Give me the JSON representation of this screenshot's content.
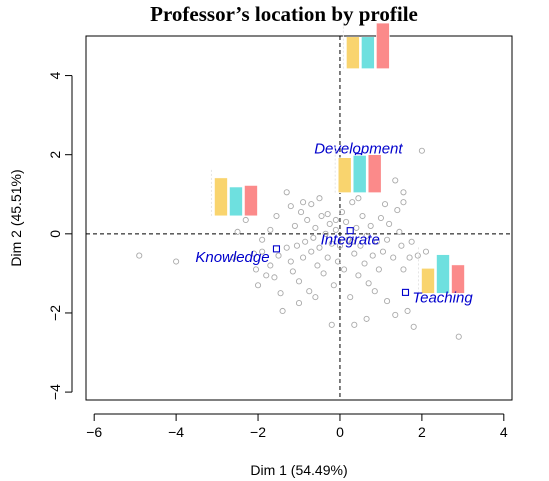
{
  "chart_data": {
    "type": "scatter",
    "title": "Professor’s location by profile",
    "xlabel": "Dim 1 (54.49%)",
    "ylabel": "Dim 2 (45.51%)",
    "xlim": [
      -6.2,
      4.2
    ],
    "ylim": [
      -4.2,
      5.0
    ],
    "xticks": [
      -6,
      -4,
      -2,
      0,
      2,
      4
    ],
    "yticks": [
      -4,
      -2,
      0,
      2,
      4
    ],
    "xtick_labels": [
      "−6",
      "−4",
      "−2",
      "0",
      "2",
      "4"
    ],
    "ytick_labels": [
      "−4",
      "−2",
      "0",
      "2",
      "4"
    ],
    "reference_lines": {
      "x": 0,
      "y": 0,
      "style": "dashed"
    },
    "bar_colors": [
      "#F9D46E",
      "#6EE0DF",
      "#FB8A8A"
    ],
    "profiles": [
      {
        "label": "Development",
        "x": 0.45,
        "y": 1.95,
        "bars": [
          0.84,
          0.84,
          1.2
        ]
      },
      {
        "label": "Integrate",
        "x": 0.25,
        "y": 0.08,
        "bars": [
          0.92,
          0.98,
          1.0
        ]
      },
      {
        "label": "Knowledge",
        "x": -1.55,
        "y": -0.38,
        "bars": [
          1.0,
          0.76,
          0.8
        ]
      },
      {
        "label": "Teaching",
        "x": 1.6,
        "y": -1.48,
        "bars": [
          0.66,
          1.02,
          0.75
        ]
      }
    ],
    "points": [
      [
        -4.9,
        -0.55
      ],
      [
        -4.0,
        -0.7
      ],
      [
        -2.6,
        -0.6
      ],
      [
        -2.1,
        -0.5
      ],
      [
        -2.05,
        -0.9
      ],
      [
        -2.0,
        -1.3
      ],
      [
        -1.9,
        -0.45
      ],
      [
        -1.8,
        -1.05
      ],
      [
        -1.7,
        -0.8
      ],
      [
        -1.6,
        -1.1
      ],
      [
        -1.5,
        -0.55
      ],
      [
        -1.45,
        -1.5
      ],
      [
        -1.4,
        -1.95
      ],
      [
        -1.3,
        -0.35
      ],
      [
        -1.2,
        -0.7
      ],
      [
        -1.15,
        -0.95
      ],
      [
        -1.1,
        0.2
      ],
      [
        -1.05,
        -0.3
      ],
      [
        -1.0,
        -1.2
      ],
      [
        -0.95,
        0.55
      ],
      [
        -0.9,
        -0.6
      ],
      [
        -0.85,
        -0.2
      ],
      [
        -0.8,
        0.35
      ],
      [
        -0.75,
        -1.45
      ],
      [
        -0.7,
        -0.45
      ],
      [
        -0.65,
        -0.1
      ],
      [
        -0.6,
        0.15
      ],
      [
        -0.55,
        -0.8
      ],
      [
        -0.5,
        -0.35
      ],
      [
        -0.45,
        0.45
      ],
      [
        -0.4,
        -1.0
      ],
      [
        -0.35,
        0.0
      ],
      [
        -0.3,
        -0.6
      ],
      [
        -0.25,
        0.25
      ],
      [
        -0.2,
        -0.25
      ],
      [
        -0.15,
        -1.3
      ],
      [
        -0.1,
        0.1
      ],
      [
        -0.05,
        -0.7
      ],
      [
        0.0,
        -0.3
      ],
      [
        0.05,
        0.55
      ],
      [
        0.1,
        -0.9
      ],
      [
        0.15,
        0.3
      ],
      [
        0.2,
        -0.15
      ],
      [
        0.25,
        -1.6
      ],
      [
        0.3,
        0.8
      ],
      [
        0.35,
        -0.5
      ],
      [
        0.4,
        0.15
      ],
      [
        0.45,
        -1.05
      ],
      [
        0.5,
        -0.3
      ],
      [
        0.55,
        0.45
      ],
      [
        0.6,
        -0.75
      ],
      [
        0.65,
        -0.05
      ],
      [
        0.7,
        -1.25
      ],
      [
        0.75,
        0.2
      ],
      [
        0.8,
        -0.55
      ],
      [
        0.85,
        1.25
      ],
      [
        0.9,
        -0.2
      ],
      [
        0.95,
        -0.9
      ],
      [
        1.0,
        0.4
      ],
      [
        1.05,
        -0.45
      ],
      [
        1.1,
        0.75
      ],
      [
        1.15,
        -0.15
      ],
      [
        1.2,
        0.25
      ],
      [
        1.3,
        -0.6
      ],
      [
        1.35,
        -2.05
      ],
      [
        1.45,
        0.05
      ],
      [
        1.5,
        -0.3
      ],
      [
        1.55,
        -0.9
      ],
      [
        1.65,
        -1.95
      ],
      [
        1.7,
        -0.6
      ],
      [
        1.75,
        -0.2
      ],
      [
        1.8,
        -2.35
      ],
      [
        1.9,
        -0.55
      ],
      [
        2.0,
        2.1
      ],
      [
        2.1,
        -0.45
      ],
      [
        2.15,
        -1.0
      ],
      [
        2.5,
        -0.7
      ],
      [
        2.9,
        -2.6
      ],
      [
        -1.7,
        0.1
      ],
      [
        -1.3,
        1.05
      ],
      [
        -1.2,
        0.7
      ],
      [
        -0.9,
        0.8
      ],
      [
        -0.5,
        0.9
      ],
      [
        0.15,
        1.3
      ],
      [
        -0.3,
        0.5
      ],
      [
        1.35,
        1.35
      ],
      [
        1.55,
        1.05
      ],
      [
        1.4,
        0.6
      ],
      [
        -0.2,
        -2.3
      ],
      [
        -2.3,
        0.35
      ],
      [
        -2.5,
        0.05
      ],
      [
        -1.0,
        -1.75
      ],
      [
        -0.6,
        -1.6
      ],
      [
        0.65,
        -2.15
      ],
      [
        0.35,
        -2.3
      ],
      [
        1.15,
        -1.7
      ],
      [
        -1.55,
        0.45
      ],
      [
        -1.9,
        -0.15
      ],
      [
        -0.7,
        0.75
      ],
      [
        0.45,
        0.9
      ],
      [
        0.85,
        -1.45
      ],
      [
        1.55,
        0.8
      ],
      [
        -0.1,
        0.35
      ],
      [
        0.3,
        -0.2
      ]
    ]
  }
}
